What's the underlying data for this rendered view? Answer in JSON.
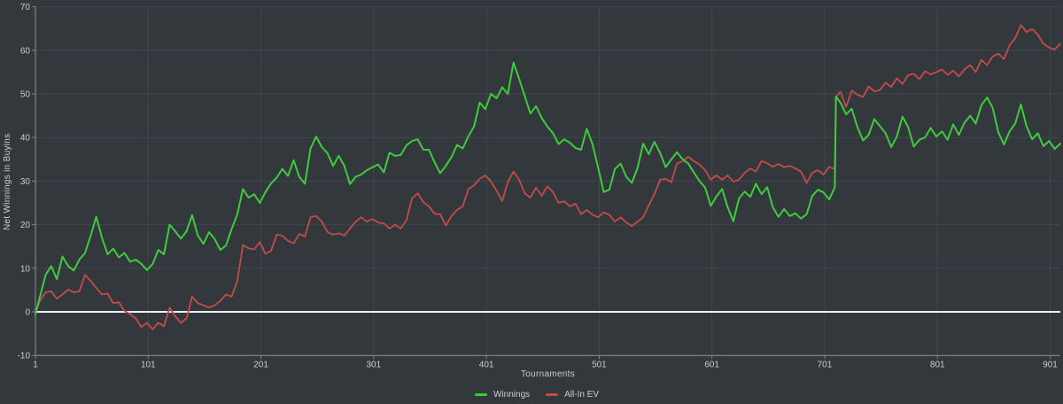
{
  "colors": {
    "background": "#33383c",
    "grid": "#41474c",
    "axis": "#8e9498",
    "tick": "#7c8286",
    "zero_line": "#ebedee",
    "label_text": "#c8cdd0"
  },
  "chart_data": {
    "type": "line",
    "title": "",
    "xlabel": "Tournaments",
    "ylabel": "Net Winnings in Buyins",
    "xlim": [
      1,
      910
    ],
    "ylim": [
      -10,
      70
    ],
    "x_ticks": [
      1,
      101,
      201,
      301,
      401,
      501,
      601,
      701,
      801,
      901
    ],
    "y_ticks": [
      -10,
      0,
      10,
      20,
      30,
      40,
      50,
      60,
      70
    ],
    "grid": true,
    "zero_line_at": 0,
    "legend_position": "bottom-center",
    "x": [
      1,
      5,
      10,
      15,
      20,
      25,
      30,
      35,
      40,
      45,
      50,
      55,
      60,
      65,
      70,
      75,
      80,
      85,
      90,
      95,
      100,
      105,
      110,
      115,
      120,
      125,
      130,
      135,
      140,
      145,
      150,
      155,
      160,
      165,
      170,
      175,
      180,
      185,
      190,
      195,
      200,
      205,
      210,
      215,
      220,
      225,
      230,
      235,
      240,
      245,
      250,
      255,
      260,
      265,
      270,
      275,
      280,
      285,
      290,
      295,
      300,
      305,
      310,
      315,
      320,
      325,
      330,
      335,
      340,
      345,
      350,
      355,
      360,
      365,
      370,
      375,
      380,
      385,
      390,
      395,
      400,
      405,
      410,
      415,
      420,
      425,
      430,
      435,
      440,
      445,
      450,
      455,
      460,
      465,
      470,
      475,
      480,
      485,
      490,
      495,
      500,
      505,
      510,
      515,
      520,
      525,
      530,
      535,
      540,
      545,
      550,
      555,
      560,
      565,
      570,
      575,
      580,
      585,
      590,
      595,
      600,
      605,
      610,
      615,
      620,
      625,
      630,
      635,
      640,
      645,
      650,
      655,
      660,
      665,
      670,
      675,
      680,
      685,
      690,
      695,
      700,
      705,
      710,
      711,
      715,
      720,
      725,
      730,
      735,
      740,
      745,
      750,
      755,
      760,
      765,
      770,
      775,
      780,
      785,
      790,
      795,
      800,
      805,
      810,
      815,
      820,
      825,
      830,
      835,
      840,
      845,
      850,
      855,
      860,
      865,
      870,
      875,
      880,
      885,
      890,
      895,
      900,
      905,
      910
    ],
    "series": [
      {
        "name": "Winnings",
        "color": "#3ecb3e",
        "stroke_width": 2,
        "values": [
          -0.5,
          3.5,
          8.5,
          10.5,
          7.5,
          12.7,
          10.5,
          9.5,
          12,
          13.5,
          17.5,
          21.8,
          17,
          13.2,
          14.5,
          12.5,
          13.5,
          11.5,
          12,
          11,
          9.6,
          11,
          14.2,
          13.2,
          20,
          18.5,
          16.8,
          18.5,
          22.2,
          17.5,
          15.6,
          18.3,
          16.7,
          14.2,
          15.2,
          19,
          22.3,
          28.2,
          26.2,
          27,
          25,
          27.5,
          29.5,
          30.8,
          32.8,
          31.2,
          34.8,
          31,
          29.4,
          37.5,
          40.2,
          37.8,
          36.4,
          33.5,
          35.8,
          33.5,
          29.3,
          31,
          31.5,
          32.5,
          33.2,
          33.8,
          32,
          36.5,
          35.8,
          36,
          38.2,
          39.2,
          39.6,
          37.2,
          37.2,
          34.3,
          31.8,
          33.5,
          35.5,
          38.3,
          37.5,
          40.3,
          42.5,
          48,
          46.5,
          50,
          49,
          51.5,
          50,
          57.2,
          53.5,
          49.5,
          45.5,
          47.2,
          44.5,
          42.5,
          41,
          38.5,
          39.6,
          38.8,
          37.6,
          37.2,
          42,
          38.5,
          33.2,
          27.5,
          28,
          32.8,
          34,
          31,
          29.6,
          33,
          38.6,
          36.2,
          39,
          36.5,
          33.2,
          35,
          36.6,
          35,
          34,
          32,
          30,
          28.5,
          24.3,
          26.5,
          28.2,
          24,
          20.8,
          26,
          27.6,
          26.4,
          29.4,
          27,
          28.6,
          24,
          21.8,
          23.6,
          22,
          22.6,
          21.4,
          22.4,
          26.6,
          28,
          27.4,
          25.8,
          28.6,
          49.4,
          48,
          45.3,
          46.6,
          42.4,
          39.3,
          40.6,
          44.2,
          42.6,
          41,
          37.8,
          40.2,
          44.8,
          42.4,
          37.9,
          39.5,
          40,
          42.2,
          40.2,
          41.4,
          39.5,
          43,
          40.6,
          43.4,
          45,
          43.2,
          47.4,
          49.2,
          46.8,
          41.2,
          38.4,
          41.4,
          43.2,
          47.6,
          42.6,
          39.6,
          41,
          38,
          39.2,
          37.4,
          38.6
        ]
      },
      {
        "name": "All-In EV",
        "color": "#c44b4b",
        "stroke_width": 1.8,
        "values": [
          -0.3,
          2.5,
          4.5,
          4.7,
          3,
          4,
          5.1,
          4.5,
          4.7,
          8.5,
          7.1,
          5.5,
          4,
          4.2,
          2,
          2.2,
          0.2,
          -0.5,
          -1.5,
          -3.5,
          -2.5,
          -4,
          -2.5,
          -3.3,
          1,
          -1,
          -2.5,
          -1.5,
          3.5,
          2,
          1.5,
          1,
          1.5,
          2.5,
          4,
          3.5,
          7,
          15.3,
          14.6,
          14.3,
          16,
          13.3,
          14,
          17.7,
          17.5,
          16.3,
          15.7,
          17.9,
          17.3,
          21.7,
          22,
          20.7,
          18.3,
          17.7,
          18,
          17.5,
          19.1,
          20.7,
          21.7,
          20.7,
          21.3,
          20.5,
          20.3,
          19.1,
          20,
          19.1,
          21,
          26,
          27.2,
          25.2,
          24.2,
          22.5,
          22.4,
          19.8,
          22,
          23.4,
          24.2,
          28.2,
          29,
          30.5,
          31.3,
          29.9,
          27.8,
          25.4,
          29.8,
          32.2,
          30.3,
          27.2,
          26.2,
          28.5,
          26.6,
          28.8,
          27.5,
          25,
          25.4,
          24.2,
          24.8,
          22.4,
          23.4,
          22.3,
          21.7,
          22.8,
          22.3,
          20.7,
          21.7,
          20.5,
          19.7,
          20.7,
          21.7,
          24.5,
          27,
          30.3,
          30.5,
          29.8,
          34,
          34.6,
          35.6,
          34.6,
          33.8,
          32.5,
          30.3,
          31.3,
          30.3,
          31.3,
          29.9,
          30.3,
          31.9,
          32.9,
          32.2,
          34.6,
          34.1,
          33.3,
          33.9,
          33.2,
          33.5,
          32.9,
          32.2,
          29.6,
          31.9,
          32.5,
          31.5,
          33.3,
          32.7,
          49.3,
          50.5,
          47,
          50.8,
          49.8,
          49.3,
          51.7,
          50.6,
          50.9,
          52.6,
          51.6,
          53.6,
          52.3,
          54.3,
          54.6,
          53.4,
          55.2,
          54.5,
          55,
          55.6,
          54.4,
          55.3,
          54,
          55.6,
          56.6,
          55,
          57.8,
          56.6,
          58.6,
          59.2,
          58,
          61.2,
          62.8,
          65.8,
          64.2,
          64.9,
          63.6,
          61.5,
          60.6,
          60.2,
          61.5
        ]
      }
    ]
  }
}
